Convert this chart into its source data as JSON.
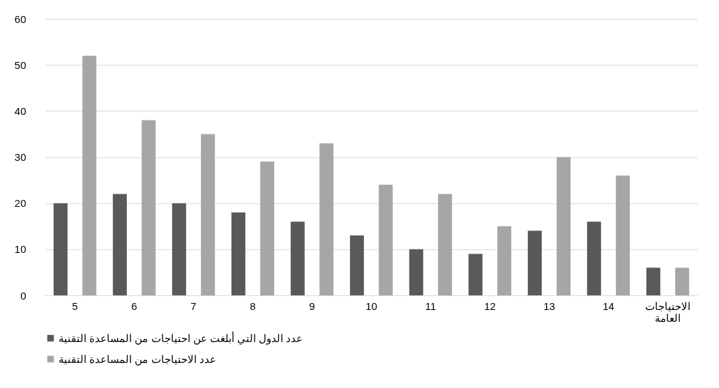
{
  "chart_data": {
    "type": "bar",
    "categories": [
      "5",
      "6",
      "7",
      "8",
      "9",
      "10",
      "11",
      "12",
      "13",
      "14",
      "الاحتياجات العامة"
    ],
    "series": [
      {
        "name": "عدد الدول التي أبلغت عن احتياجات من المساعدة التقنية",
        "color": "#595959",
        "values": [
          20,
          22,
          20,
          18,
          16,
          13,
          10,
          9,
          14,
          16,
          6
        ]
      },
      {
        "name": "عدد الاحتياجات من المساعدة التقنية",
        "color": "#a6a6a6",
        "values": [
          52,
          38,
          35,
          29,
          33,
          24,
          22,
          15,
          30,
          26,
          6
        ]
      }
    ],
    "ylim": [
      0,
      60
    ],
    "yticks": [
      0,
      10,
      20,
      30,
      40,
      50,
      60
    ],
    "grid": "y",
    "legend": "bottom"
  }
}
